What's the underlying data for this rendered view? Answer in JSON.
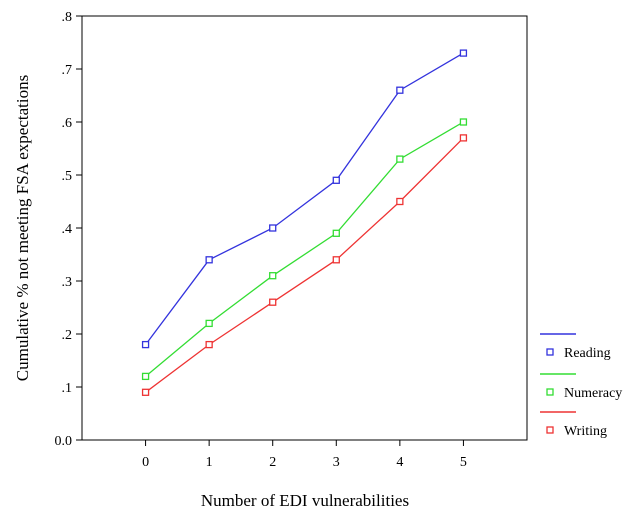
{
  "chart_data": {
    "type": "line",
    "title": "",
    "xlabel": "Number of EDI vulnerabilities",
    "ylabel": "Cumulative % not meeting FSA expectations",
    "x": [
      0,
      1,
      2,
      3,
      4,
      5
    ],
    "x_tick_labels": [
      "0",
      "1",
      "2",
      "3",
      "4",
      "5"
    ],
    "xlim": [
      -1,
      6
    ],
    "ylim": [
      0,
      0.8
    ],
    "y_ticks": [
      0,
      0.1,
      0.2,
      0.3,
      0.4,
      0.5,
      0.6,
      0.7,
      0.8
    ],
    "y_tick_labels": [
      "0.0",
      ".1",
      ".2",
      ".3",
      ".4",
      ".5",
      ".6",
      ".7",
      ".8"
    ],
    "grid": false,
    "legend_position": "right",
    "series": [
      {
        "name": "Reading",
        "color": "#3333dd",
        "values": [
          0.18,
          0.34,
          0.4,
          0.49,
          0.66,
          0.73
        ]
      },
      {
        "name": "Numeracy",
        "color": "#33dd33",
        "values": [
          0.12,
          0.22,
          0.31,
          0.39,
          0.53,
          0.6
        ]
      },
      {
        "name": "Writing",
        "color": "#ee3333",
        "values": [
          0.09,
          0.18,
          0.26,
          0.34,
          0.45,
          0.57
        ]
      }
    ]
  }
}
